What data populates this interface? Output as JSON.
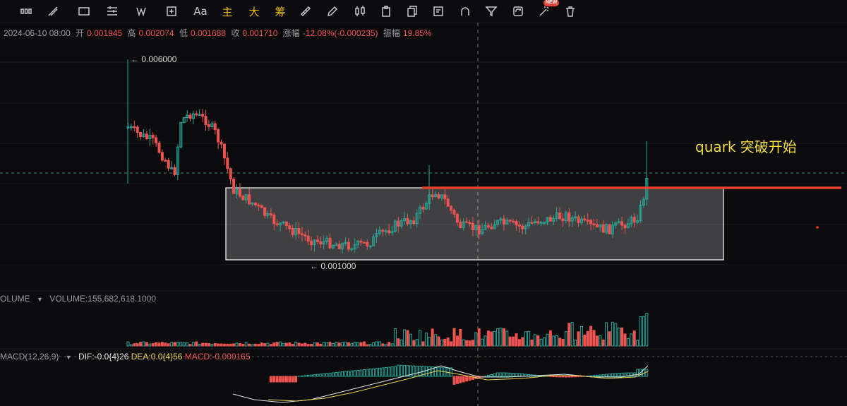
{
  "toolbar": {
    "text_tools": {
      "font": "Aa",
      "main": "主",
      "big": "大",
      "chip": "筹"
    },
    "new_badge": "NEW"
  },
  "ohlc": {
    "date": "2024-06-10 08:00",
    "open_label": "开",
    "open": "0.001945",
    "high_label": "高",
    "high": "0.002074",
    "low_label": "低",
    "low": "0.001688",
    "close_label": "收",
    "close": "0.001710",
    "change_label": "涨幅",
    "change": "-12.08%(-0.000235)",
    "amp_label": "振幅",
    "amp": "19.85%"
  },
  "price_marks": {
    "high": "← 0.006000",
    "low": "← 0.001000"
  },
  "volume": {
    "label": "OLUME",
    "value": "VOLUME:155,682,618.1000"
  },
  "macd": {
    "label": "MACD(12,26,9)",
    "dif": "DIF:-0.0{4}26",
    "dea": "DEA:0.0{4}56",
    "macd": "MACD:-0.000165"
  },
  "annotation": "quark 突破开始",
  "colors": {
    "up": "#26a69a",
    "down": "#ef5350",
    "breakout_line": "#e8412c",
    "annotation": "#f2dc3a",
    "box": "#ffffff"
  }
}
